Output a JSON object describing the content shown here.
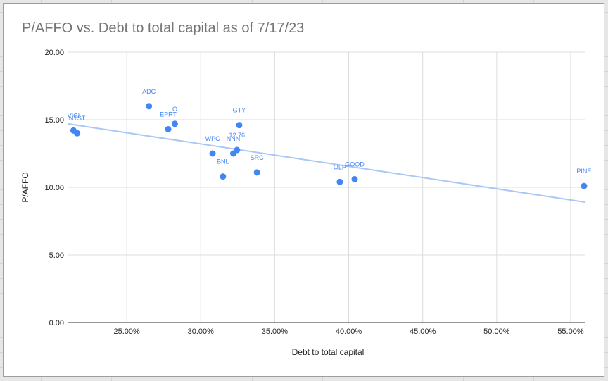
{
  "chart_data": {
    "type": "scatter",
    "title": "P/AFFO vs. Debt to total capital as of 7/17/23",
    "xlabel": "Debt to total capital",
    "ylabel": "P/AFFO",
    "xlim": [
      0.21,
      0.56
    ],
    "ylim": [
      0,
      20
    ],
    "xticks": [
      0.25,
      0.3,
      0.35,
      0.4,
      0.45,
      0.5,
      0.55
    ],
    "xtick_labels": [
      "25.00%",
      "30.00%",
      "35.00%",
      "40.00%",
      "45.00%",
      "50.00%",
      "55.00%"
    ],
    "yticks": [
      0,
      5,
      10,
      15,
      20
    ],
    "ytick_labels": [
      "0.00",
      "5.00",
      "10.00",
      "15.00",
      "20.00"
    ],
    "grid": true,
    "legend": "none",
    "point_color": "#4285f4",
    "trendline_color": "#a9c8f5",
    "trendline": {
      "x": [
        0.21,
        0.56
      ],
      "y": [
        14.7,
        8.9
      ]
    },
    "points": [
      {
        "label": "VICI",
        "x": 0.214,
        "y": 14.2
      },
      {
        "label": "NTST",
        "x": 0.2165,
        "y": 14.0
      },
      {
        "label": "ADC",
        "x": 0.265,
        "y": 16.0
      },
      {
        "label": "EPRT",
        "x": 0.278,
        "y": 14.3
      },
      {
        "label": "O",
        "x": 0.2825,
        "y": 14.7
      },
      {
        "label": "WPC",
        "x": 0.308,
        "y": 12.5
      },
      {
        "label": "BNL",
        "x": 0.315,
        "y": 10.8
      },
      {
        "label": "NNN",
        "x": 0.322,
        "y": 12.5
      },
      {
        "label": "12.76",
        "x": 0.3245,
        "y": 12.76
      },
      {
        "label": "GTY",
        "x": 0.326,
        "y": 14.6
      },
      {
        "label": "SRC",
        "x": 0.338,
        "y": 11.1
      },
      {
        "label": "OLP",
        "x": 0.394,
        "y": 10.4
      },
      {
        "label": "GOOD",
        "x": 0.404,
        "y": 10.6
      },
      {
        "label": "PINE",
        "x": 0.559,
        "y": 10.1
      }
    ]
  }
}
